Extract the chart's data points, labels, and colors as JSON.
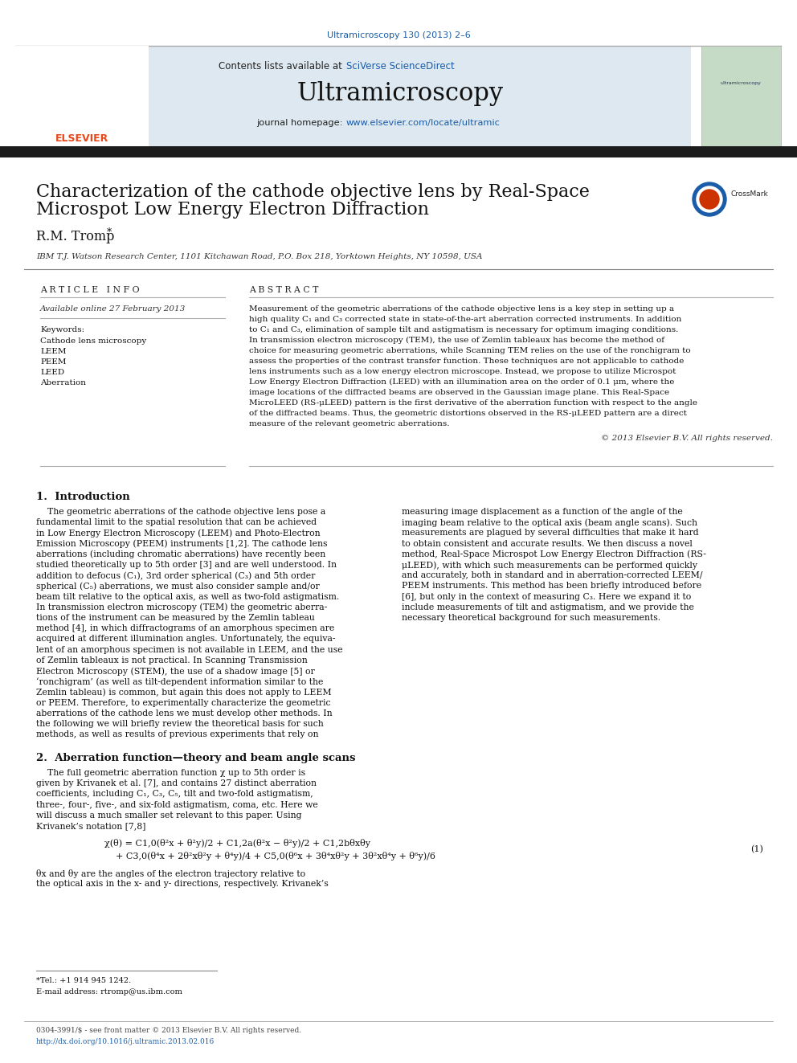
{
  "journal_ref": "Ultramicroscopy 130 (2013) 2–6",
  "journal_name": "Ultramicroscopy",
  "contents_text": "Contents lists available at ",
  "sciverse_text": "SciVerse ScienceDirect",
  "journal_homepage_text": "journal homepage: ",
  "journal_url": "www.elsevier.com/locate/ultramic",
  "title_line1": "Characterization of the cathode objective lens by Real-Space",
  "title_line2": "Microspot Low Energy Electron Diffraction",
  "author": "R.M. Tromp",
  "affiliation": "IBM T.J. Watson Research Center, 1101 Kitchawan Road, P.O. Box 218, Yorktown Heights, NY 10598, USA",
  "article_info_header": "A R T I C L E   I N F O",
  "available_online": "Available online 27 February 2013",
  "keywords_header": "Keywords:",
  "keywords": [
    "Cathode lens microscopy",
    "LEEM",
    "PEEM",
    "LEED",
    "Aberration"
  ],
  "abstract_header": "A B S T R A C T",
  "abstract_lines": [
    "Measurement of the geometric aberrations of the cathode objective lens is a key step in setting up a",
    "high quality C₁ and C₃ corrected state in state-of-the-art aberration corrected instruments. In addition",
    "to C₁ and C₃, elimination of sample tilt and astigmatism is necessary for optimum imaging conditions.",
    "In transmission electron microscopy (TEM), the use of Zemlin tableaux has become the method of",
    "choice for measuring geometric aberrations, while Scanning TEM relies on the use of the ronchigram to",
    "assess the properties of the contrast transfer function. These techniques are not applicable to cathode",
    "lens instruments such as a low energy electron microscope. Instead, we propose to utilize Microspot",
    "Low Energy Electron Diffraction (LEED) with an illumination area on the order of 0.1 μm, where the",
    "image locations of the diffracted beams are observed in the Gaussian image plane. This Real-Space",
    "MicroLEED (RS-μLEED) pattern is the first derivative of the aberration function with respect to the angle",
    "of the diffracted beams. Thus, the geometric distortions observed in the RS-μLEED pattern are a direct",
    "measure of the relevant geometric aberrations."
  ],
  "copyright": "© 2013 Elsevier B.V. All rights reserved.",
  "sec1_header": "1.  Introduction",
  "sec1_left_lines": [
    "    The geometric aberrations of the cathode objective lens pose a",
    "fundamental limit to the spatial resolution that can be achieved",
    "in Low Energy Electron Microscopy (LEEM) and Photo-Electron",
    "Emission Microscopy (PEEM) instruments [1,2]. The cathode lens",
    "aberrations (including chromatic aberrations) have recently been",
    "studied theoretically up to 5th order [3] and are well understood. In",
    "addition to defocus (C₁), 3rd order spherical (C₃) and 5th order",
    "spherical (C₅) aberrations, we must also consider sample and/or",
    "beam tilt relative to the optical axis, as well as two-fold astigmatism.",
    "In transmission electron microscopy (TEM) the geometric aberra-",
    "tions of the instrument can be measured by the Zemlin tableau",
    "method [4], in which diffractograms of an amorphous specimen are",
    "acquired at different illumination angles. Unfortunately, the equiva-",
    "lent of an amorphous specimen is not available in LEEM, and the use",
    "of Zemlin tableaux is not practical. In Scanning Transmission",
    "Electron Microscopy (STEM), the use of a shadow image [5] or",
    "‘ronchigram’ (as well as tilt-dependent information similar to the",
    "Zemlin tableau) is common, but again this does not apply to LEEM",
    "or PEEM. Therefore, to experimentally characterize the geometric",
    "aberrations of the cathode lens we must develop other methods. In",
    "the following we will briefly review the theoretical basis for such",
    "methods, as well as results of previous experiments that rely on"
  ],
  "sec1_right_lines": [
    "measuring image displacement as a function of the angle of the",
    "imaging beam relative to the optical axis (beam angle scans). Such",
    "measurements are plagued by several difficulties that make it hard",
    "to obtain consistent and accurate results. We then discuss a novel",
    "method, Real-Space Microspot Low Energy Electron Diffraction (RS-",
    "μLEED), with which such measurements can be performed quickly",
    "and accurately, both in standard and in aberration-corrected LEEM/",
    "PEEM instruments. This method has been briefly introduced before",
    "[6], but only in the context of measuring C₃. Here we expand it to",
    "include measurements of tilt and astigmatism, and we provide the",
    "necessary theoretical background for such measurements."
  ],
  "sec2_header": "2.  Aberration function—theory and beam angle scans",
  "sec2_intro_lines": [
    "    The full geometric aberration function χ up to 5th order is",
    "given by Krivanek et al. [7], and contains 27 distinct aberration",
    "coefficients, including C₁, C₃, C₅, tilt and two-fold astigmatism,",
    "three-, four-, five-, and six-fold astigmatism, coma, etc. Here we",
    "will discuss a much smaller set relevant to this paper. Using",
    "Krivanek’s notation [7,8]"
  ],
  "eq_line1": "χ(θ) = C1,0(θ²x + θ²y)/2 + C1,2a(θ²x − θ²y)/2 + C1,2bθxθy",
  "eq_line2": "    + C3,0(θ⁴x + 2θ²xθ²y + θ⁴y)/4 + C5,0(θ⁶x + 3θ⁴xθ²y + 3θ²xθ⁴y + θ⁶y)/6",
  "eq_number": "(1)",
  "theta_lines": [
    "θx and θy are the angles of the electron trajectory relative to",
    "the optical axis in the x- and y- directions, respectively. Krivanek’s"
  ],
  "footnote_tel": "*Tel.: +1 914 945 1242.",
  "footnote_email": "E-mail address: rtromp@us.ibm.com",
  "footer_issn": "0304-3991/$ - see front matter © 2013 Elsevier B.V. All rights reserved.",
  "footer_doi": "http://dx.doi.org/10.1016/j.ultramic.2013.02.016",
  "bg_color": "#ffffff",
  "header_bg": "#dde8f0",
  "bar_color": "#1c1c1c",
  "link_color": "#1a5ca8",
  "elsevier_orange": "#e8471a",
  "text_dark": "#111111",
  "text_gray": "#555555"
}
